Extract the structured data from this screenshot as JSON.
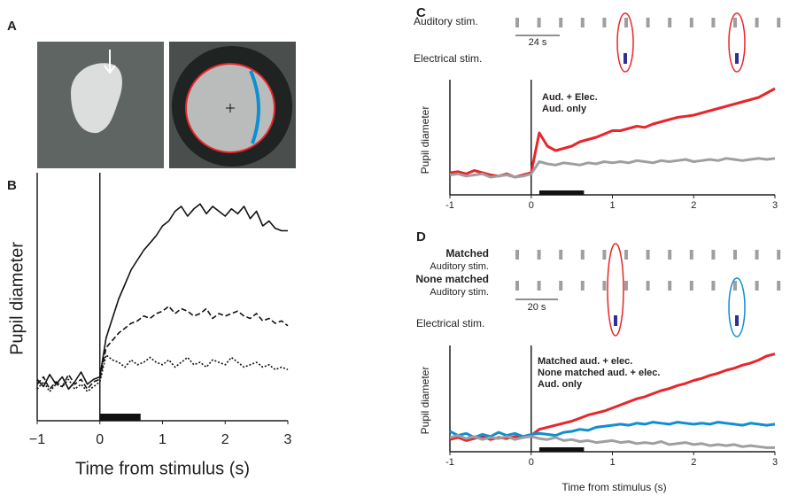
{
  "image_panel": {
    "panel": "A"
  },
  "chart_data": [
    {
      "type": "line",
      "panel": "B",
      "ylabel": "Pupil diameter",
      "xlabel": "Time from stimulus (s)",
      "xlim": [
        -1,
        3
      ],
      "ylim": [
        0,
        100
      ],
      "xticks": [
        {
          "value": -1,
          "label": "−1"
        },
        0,
        1,
        2,
        3
      ],
      "stimulus_bar": [
        0,
        0.65
      ],
      "x": [
        -1,
        -0.9,
        -0.8,
        -0.7,
        -0.6,
        -0.5,
        -0.4,
        -0.3,
        -0.2,
        -0.1,
        0,
        0.1,
        0.2,
        0.3,
        0.4,
        0.5,
        0.6,
        0.7,
        0.8,
        0.9,
        1,
        1.1,
        1.2,
        1.3,
        1.4,
        1.5,
        1.6,
        1.7,
        1.8,
        1.9,
        2,
        2.1,
        2.2,
        2.3,
        2.4,
        2.5,
        2.6,
        2.7,
        2.8,
        2.9,
        3
      ],
      "series": [
        {
          "color": "#111111",
          "dash": "solid",
          "values": [
            17,
            14,
            19,
            15,
            18,
            13,
            16,
            20,
            15,
            17,
            18,
            34,
            42,
            50,
            56,
            62,
            66,
            70,
            73,
            76,
            80,
            82,
            86,
            88,
            84,
            87,
            89,
            85,
            88,
            86,
            84,
            87,
            85,
            88,
            83,
            86,
            80,
            82,
            79,
            78,
            78
          ]
        },
        {
          "color": "#111111",
          "dash": "dashed",
          "values": [
            15,
            18,
            13,
            16,
            14,
            19,
            15,
            17,
            13,
            16,
            17,
            30,
            33,
            36,
            38,
            40,
            41,
            43,
            42,
            44,
            45,
            47,
            44,
            46,
            45,
            43,
            44,
            46,
            42,
            44,
            43,
            44,
            45,
            43,
            42,
            44,
            41,
            42,
            40,
            41,
            39
          ]
        },
        {
          "color": "#111111",
          "dash": "dotted",
          "values": [
            13,
            16,
            12,
            15,
            14,
            17,
            13,
            15,
            12,
            14,
            16,
            27,
            25,
            24,
            22,
            25,
            23,
            24,
            26,
            24,
            23,
            25,
            22,
            24,
            26,
            23,
            24,
            22,
            25,
            24,
            23,
            26,
            24,
            22,
            23,
            24,
            22,
            23,
            21,
            22,
            21
          ]
        }
      ]
    },
    {
      "type": "line",
      "panel": "C",
      "ylabel": "Pupil diameter",
      "schematic": {
        "auditory": "Auditory stim.",
        "scale": "24 s",
        "electrical": "Electrical stim."
      },
      "xlim": [
        -1,
        3
      ],
      "ylim": [
        0,
        100
      ],
      "xticks": [
        -1,
        0,
        1,
        2,
        3
      ],
      "stimulus_bar": [
        0.1,
        0.65
      ],
      "x": [
        -1,
        -0.9,
        -0.8,
        -0.7,
        -0.6,
        -0.5,
        -0.4,
        -0.3,
        -0.2,
        -0.1,
        0,
        0.1,
        0.2,
        0.3,
        0.4,
        0.5,
        0.6,
        0.7,
        0.8,
        0.9,
        1,
        1.1,
        1.2,
        1.3,
        1.4,
        1.5,
        1.6,
        1.7,
        1.8,
        1.9,
        2,
        2.1,
        2.2,
        2.3,
        2.4,
        2.5,
        2.6,
        2.7,
        2.8,
        2.9,
        3
      ],
      "series": [
        {
          "name": "Aud. + Elec.",
          "color": "#e8262b",
          "values": [
            20,
            21,
            19,
            22,
            20,
            18,
            17,
            19,
            16,
            18,
            20,
            56,
            44,
            40,
            42,
            44,
            48,
            50,
            52,
            55,
            58,
            58,
            60,
            62,
            61,
            64,
            66,
            68,
            70,
            71,
            72,
            74,
            76,
            78,
            80,
            82,
            84,
            86,
            88,
            92,
            96
          ]
        },
        {
          "name": "Aud. only",
          "color": "#9d9fa2",
          "values": [
            18,
            19,
            17,
            18,
            19,
            16,
            17,
            18,
            16,
            17,
            19,
            30,
            28,
            27,
            29,
            28,
            27,
            29,
            28,
            30,
            29,
            30,
            29,
            31,
            30,
            29,
            31,
            30,
            31,
            32,
            30,
            31,
            32,
            31,
            33,
            32,
            31,
            32,
            33,
            32,
            33
          ]
        }
      ]
    },
    {
      "type": "line",
      "panel": "D",
      "ylabel": "Pupil diameter",
      "xlabel": "Time from stimulus (s)",
      "schematic": {
        "matched": "Matched",
        "matched_sub": "Auditory stim.",
        "none_matched": "None matched",
        "none_matched_sub": "Auditory stim.",
        "scale": "20 s",
        "electrical": "Electrical stim."
      },
      "xlim": [
        -1,
        3
      ],
      "ylim": [
        0,
        100
      ],
      "xticks": [
        -1,
        0,
        1,
        2,
        3
      ],
      "stimulus_bar": [
        0.1,
        0.65
      ],
      "x": [
        -1,
        -0.9,
        -0.8,
        -0.7,
        -0.6,
        -0.5,
        -0.4,
        -0.3,
        -0.2,
        -0.1,
        0,
        0.1,
        0.2,
        0.3,
        0.4,
        0.5,
        0.6,
        0.7,
        0.8,
        0.9,
        1,
        1.1,
        1.2,
        1.3,
        1.4,
        1.5,
        1.6,
        1.7,
        1.8,
        1.9,
        2,
        2.1,
        2.2,
        2.3,
        2.4,
        2.5,
        2.6,
        2.7,
        2.8,
        2.9,
        3
      ],
      "series": [
        {
          "name": "Matched aud. + elec.",
          "color": "#e8262b",
          "values": [
            12,
            14,
            11,
            13,
            15,
            12,
            14,
            13,
            15,
            14,
            16,
            22,
            24,
            26,
            28,
            30,
            33,
            36,
            38,
            40,
            43,
            46,
            49,
            52,
            54,
            57,
            60,
            62,
            65,
            67,
            70,
            72,
            75,
            77,
            80,
            82,
            85,
            87,
            90,
            94,
            96
          ]
        },
        {
          "name": "None matched aud. + elec.",
          "color": "#0f8fd3",
          "values": [
            20,
            16,
            18,
            14,
            17,
            15,
            19,
            16,
            18,
            15,
            17,
            18,
            17,
            16,
            19,
            20,
            22,
            21,
            24,
            25,
            26,
            27,
            26,
            28,
            27,
            29,
            28,
            27,
            29,
            28,
            27,
            28,
            27,
            29,
            28,
            27,
            26,
            28,
            27,
            26,
            27
          ]
        },
        {
          "name": "Aud. only",
          "color": "#9d9fa2",
          "values": [
            14,
            16,
            13,
            15,
            12,
            14,
            13,
            15,
            12,
            14,
            15,
            13,
            12,
            14,
            11,
            12,
            10,
            11,
            9,
            10,
            11,
            9,
            10,
            8,
            9,
            8,
            10,
            7,
            8,
            9,
            7,
            8,
            6,
            7,
            6,
            7,
            5,
            6,
            5,
            4,
            4
          ]
        }
      ]
    }
  ]
}
